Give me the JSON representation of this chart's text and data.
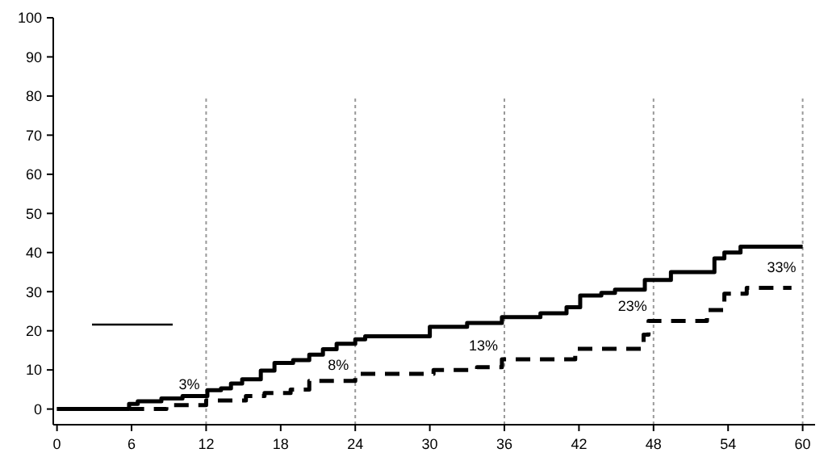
{
  "chart_data": {
    "type": "step",
    "xlim": [
      -0.3,
      61
    ],
    "ylim": [
      -4,
      100
    ],
    "xticks": [
      0,
      6,
      12,
      18,
      24,
      30,
      36,
      42,
      48,
      54,
      60
    ],
    "yticks": [
      0,
      10,
      20,
      30,
      40,
      50,
      60,
      70,
      80,
      90,
      100
    ],
    "grid": false,
    "series": [
      {
        "color": "#000000",
        "line_style": "solid",
        "x": [
          0,
          5.8,
          6.5,
          8.4,
          10.1,
          12.1,
          13.2,
          14,
          14.9,
          16.4,
          17.5,
          19,
          20.3,
          21.4,
          22.5,
          24,
          24.8,
          30,
          33,
          35.8,
          38.9,
          41,
          42.1,
          43.8,
          44.9,
          47.3,
          49.4,
          52.9,
          53.7,
          55,
          60
        ],
        "values": [
          0,
          1.3,
          2,
          2.7,
          3.3,
          4.8,
          5.3,
          6.5,
          7.6,
          9.8,
          11.8,
          12.5,
          13.9,
          15.3,
          16.7,
          17.8,
          18.6,
          21,
          22,
          23.5,
          24.5,
          26,
          29,
          29.7,
          30.5,
          33,
          35,
          38.5,
          40,
          41.5,
          41.5
        ]
      },
      {
        "color": "#000000",
        "line_style": "dashed",
        "x": [
          0,
          8.8,
          12,
          15.2,
          16.7,
          18.8,
          20.3,
          24,
          30.3,
          33.8,
          35.8,
          41.7,
          47.2,
          47.6,
          52.3,
          53.7,
          55.5,
          59.1
        ],
        "values": [
          0,
          1,
          2.2,
          3.3,
          4.1,
          5,
          7.2,
          9,
          10,
          10.7,
          12.7,
          15.4,
          19,
          22.5,
          25.3,
          29.5,
          31,
          31
        ]
      }
    ],
    "ref_lines": [
      {
        "axis": "x",
        "value": 12,
        "color": "#999999",
        "line_style": "dotted"
      },
      {
        "axis": "x",
        "value": 24,
        "color": "#999999",
        "line_style": "dotted"
      },
      {
        "axis": "x",
        "value": 36,
        "color": "#999999",
        "line_style": "dotted"
      },
      {
        "axis": "x",
        "value": 48,
        "color": "#999999",
        "line_style": "dotted"
      },
      {
        "axis": "x",
        "value": 60,
        "color": "#999999",
        "line_style": "dotted"
      }
    ],
    "annotations": [
      {
        "text": "3%",
        "x": 12,
        "y": 3
      },
      {
        "text": "8%",
        "x": 24,
        "y": 8
      },
      {
        "text": "13%",
        "x": 36,
        "y": 13
      },
      {
        "text": "23%",
        "x": 48,
        "y": 23
      },
      {
        "text": "33%",
        "x": 60,
        "y": 33
      }
    ]
  }
}
